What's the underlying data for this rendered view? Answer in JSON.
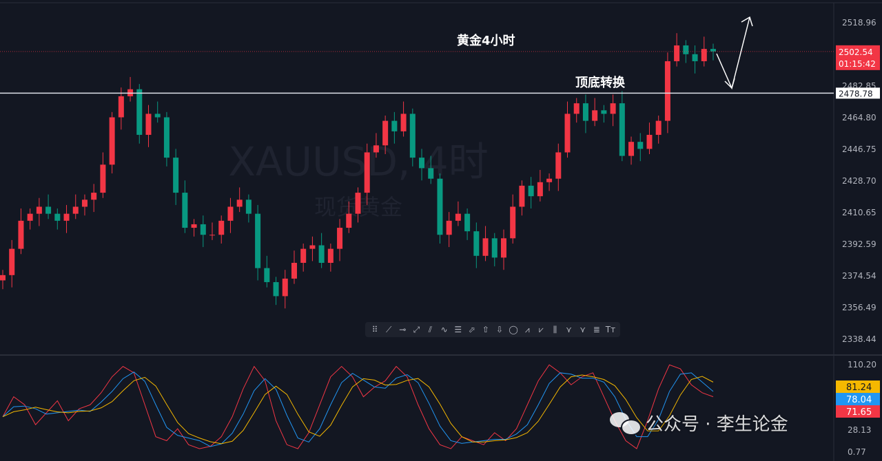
{
  "chart_data": {
    "type": "candlestick",
    "title": "黄金4小时",
    "watermark": {
      "symbol": "XAUUSD, 4时",
      "name": "现货黄金"
    },
    "colors": {
      "up": "#f23645",
      "down": "#089981",
      "background": "#131722",
      "grid": "#2a2e39"
    },
    "price_axis_ticks": [
      "2518.96",
      "2482.85",
      "2464.80",
      "2446.75",
      "2428.70",
      "2410.65",
      "2392.59",
      "2374.54",
      "2356.49",
      "2338.44"
    ],
    "ylim": [
      2338.44,
      2518.96
    ],
    "current_price": {
      "value": "2502.54",
      "countdown": "01:15:42",
      "color": "#f23645"
    },
    "horizontal_line": {
      "value": "2478.78",
      "label": "顶底转换"
    },
    "closes": [
      2375,
      2390,
      2406,
      2410,
      2414,
      2410,
      2406,
      2410,
      2414,
      2418,
      2422,
      2438,
      2465,
      2477,
      2481,
      2455,
      2467,
      2465,
      2442,
      2422,
      2402,
      2404,
      2398,
      2398,
      2406,
      2414,
      2418,
      2410,
      2379,
      2371,
      2363,
      2373,
      2382,
      2390,
      2392,
      2382,
      2390,
      2402,
      2410,
      2422,
      2445,
      2449,
      2463,
      2457,
      2467,
      2442,
      2436,
      2430,
      2398,
      2406,
      2410,
      2400,
      2386,
      2396,
      2385,
      2396,
      2414,
      2426,
      2420,
      2428,
      2430,
      2445,
      2467,
      2473,
      2463,
      2469,
      2467,
      2473,
      2443,
      2451,
      2447,
      2455,
      2463,
      2497,
      2506,
      2501,
      2497,
      2504,
      2502.54
    ],
    "oscillator": {
      "ticks": [
        "110.20",
        "28.13",
        "0.77"
      ],
      "ylim": [
        0.77,
        110.2
      ],
      "values": {
        "yellow": "81.24",
        "blue": "78.04",
        "red": "71.65"
      },
      "colors": {
        "yellow": "#f5b800",
        "blue": "#2196f3",
        "red": "#f23645"
      },
      "red_series": [
        45,
        70,
        60,
        35,
        50,
        65,
        40,
        55,
        60,
        75,
        95,
        108,
        100,
        60,
        20,
        15,
        30,
        10,
        5,
        8,
        20,
        45,
        80,
        108,
        90,
        40,
        10,
        5,
        25,
        60,
        95,
        108,
        95,
        70,
        82,
        90,
        108,
        95,
        60,
        30,
        10,
        5,
        20,
        15,
        10,
        25,
        15,
        30,
        60,
        90,
        110,
        100,
        85,
        95,
        100,
        70,
        40,
        15,
        5,
        40,
        80,
        110,
        105,
        85,
        75,
        70
      ]
    },
    "drawing_toolbar": [
      "drag",
      "trend-line",
      "horizontal-ray",
      "extended-line",
      "parallel-channel",
      "polyline",
      "date-range",
      "arrow-marker",
      "arrow-up",
      "arrow-down",
      "ellipse",
      "long-position",
      "short-position",
      "bars-pattern",
      "xabcd",
      "abcd",
      "fib-retracement",
      "text"
    ]
  },
  "overlay_watermark": "公众号 · 李生论金"
}
